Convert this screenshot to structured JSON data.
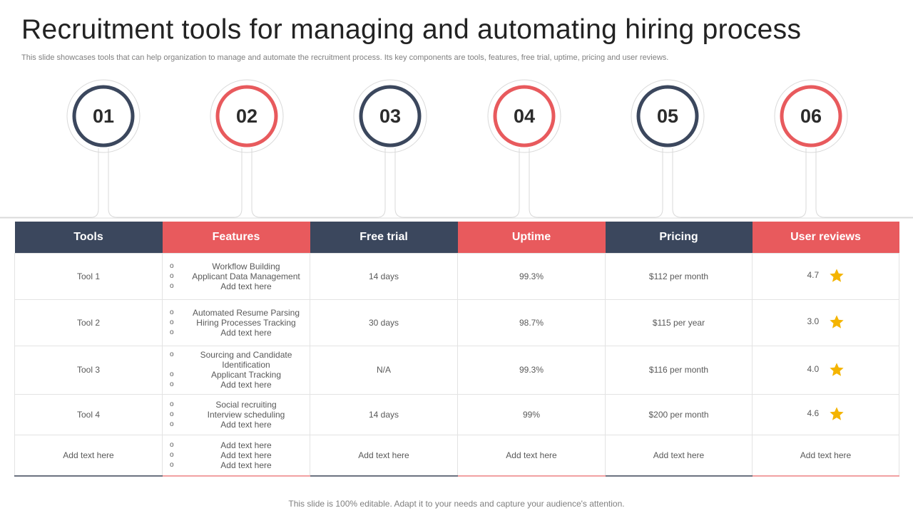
{
  "slide": {
    "title": "Recruitment tools for managing and automating hiring process",
    "subtitle": "This slide showcases tools that can help organization to manage and automate the recruitment process. Its key components are tools, features, free trial, uptime, pricing and user reviews.",
    "footer": "This slide is 100% editable. Adapt it to your needs and capture your audience's attention."
  },
  "colors": {
    "dark": "#3b475d",
    "red": "#e85a5d",
    "star": "#f4b400"
  },
  "markers": [
    "01",
    "02",
    "03",
    "04",
    "05",
    "06"
  ],
  "table": {
    "headers": [
      "Tools",
      "Features",
      "Free trial",
      "Uptime",
      "Pricing",
      "User reviews"
    ],
    "bullet_symbol": "o",
    "star_icon": "star-icon",
    "rows": [
      {
        "tool": "Tool 1",
        "features": [
          "Workflow Building",
          "Applicant Data Management",
          "Add text here"
        ],
        "free_trial": "14 days",
        "uptime": "99.3%",
        "pricing": "$112 per month",
        "rating": "4.7"
      },
      {
        "tool": "Tool 2",
        "features": [
          "Automated Resume Parsing",
          "Hiring Processes Tracking",
          "Add text here"
        ],
        "free_trial": "30 days",
        "uptime": "98.7%",
        "pricing": "$115 per year",
        "rating": "3.0"
      },
      {
        "tool": "Tool 3",
        "features": [
          "Sourcing and Candidate Identification",
          "Applicant Tracking",
          "Add text here"
        ],
        "free_trial": "N/A",
        "uptime": "99.3%",
        "pricing": "$116 per month",
        "rating": "4.0"
      },
      {
        "tool": "Tool 4",
        "features": [
          "Social recruiting",
          "Interview scheduling",
          "Add text here"
        ],
        "free_trial": "14 days",
        "uptime": "99%",
        "pricing": "$200 per month",
        "rating": "4.6"
      },
      {
        "tool": "Add text here",
        "features": [
          "Add text here",
          "Add text here",
          "Add text here"
        ],
        "free_trial": "Add text here",
        "uptime": "Add text here",
        "pricing": "Add text here",
        "review_text": "Add text here"
      }
    ]
  }
}
